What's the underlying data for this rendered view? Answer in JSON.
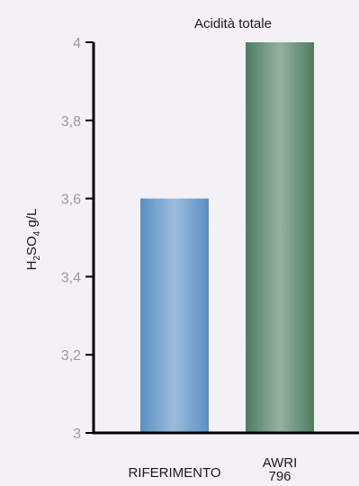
{
  "chart_data": {
    "type": "bar",
    "title": "Acidità totale",
    "ylabel": {
      "main": "H",
      "sub1": "2",
      "mid": "SO",
      "sub2": "4",
      "unit": " g/L"
    },
    "categories": [
      [
        "RIFERIMENTO"
      ],
      [
        "AWRI",
        "796"
      ]
    ],
    "values": [
      3.6,
      4.0
    ],
    "ylim": [
      3,
      4
    ],
    "yticks": [
      3,
      3.2,
      3.4,
      3.6,
      3.8,
      4
    ],
    "ytick_labels": [
      "3",
      "3,2",
      "3,4",
      "3,6",
      "3,8",
      "4"
    ],
    "colors": [
      "#6a9cca",
      "#5e8b72"
    ],
    "grid": false,
    "legend": "none"
  }
}
